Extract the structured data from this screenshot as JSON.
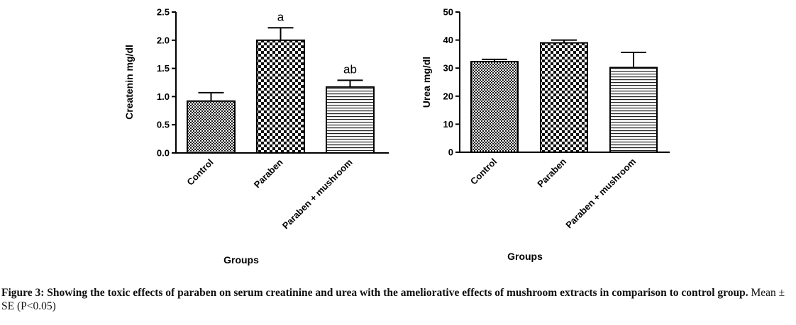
{
  "chart_data": [
    {
      "type": "bar",
      "categories": [
        "Control",
        "Paraben",
        "Paraben + mushroom"
      ],
      "values": [
        0.92,
        2.0,
        1.17
      ],
      "errors": [
        0.15,
        0.22,
        0.12
      ],
      "annotations": [
        "",
        "a",
        "ab"
      ],
      "patterns": [
        "fine-checker",
        "coarse-checker",
        "horizontal-lines"
      ],
      "title": "",
      "xlabel": "Groups",
      "ylabel": "Createnin mg/dl",
      "ylim": [
        0,
        2.5
      ],
      "yticks": [
        "0.0",
        "0.5",
        "1.0",
        "1.5",
        "2.0",
        "2.5"
      ],
      "grid": false
    },
    {
      "type": "bar",
      "categories": [
        "Control",
        "Paraben",
        "Paraben + mushroom"
      ],
      "values": [
        32.3,
        39.0,
        30.2
      ],
      "errors": [
        0.8,
        1.0,
        5.4
      ],
      "annotations": [
        "",
        "",
        ""
      ],
      "patterns": [
        "fine-checker",
        "coarse-checker",
        "horizontal-lines"
      ],
      "title": "",
      "xlabel": "Groups",
      "ylabel": "Urea mg/dl",
      "ylim": [
        0,
        50
      ],
      "yticks": [
        "0",
        "10",
        "20",
        "30",
        "40",
        "50"
      ],
      "grid": false
    }
  ],
  "caption": {
    "main": "Figure 3: Showing the toxic effects of paraben on serum creatinine and urea with the ameliorative effects of mushroom extracts in comparison to control group.",
    "tail": "Mean ± SE (P<0.05)"
  }
}
